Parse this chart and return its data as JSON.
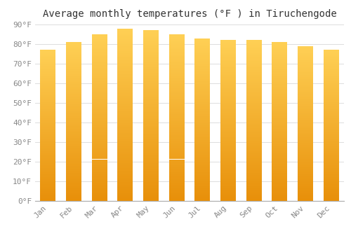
{
  "title": "Average monthly temperatures (°F ) in Tiruchengode",
  "months": [
    "Jan",
    "Feb",
    "Mar",
    "Apr",
    "May",
    "Jun",
    "Jul",
    "Aug",
    "Sep",
    "Oct",
    "Nov",
    "Dec"
  ],
  "values": [
    77,
    81,
    85,
    88,
    87,
    85,
    83,
    82,
    82,
    81,
    79,
    77
  ],
  "ylim": [
    0,
    90
  ],
  "yticks": [
    0,
    10,
    20,
    30,
    40,
    50,
    60,
    70,
    80,
    90
  ],
  "ytick_labels": [
    "0°F",
    "10°F",
    "20°F",
    "30°F",
    "40°F",
    "50°F",
    "60°F",
    "70°F",
    "80°F",
    "90°F"
  ],
  "background_color": "#FFFFFF",
  "grid_color": "#DDDDDD",
  "title_fontsize": 10,
  "tick_fontsize": 8,
  "bar_color_bottom": "#E8900A",
  "bar_color_mid": "#FFA500",
  "bar_color_top": "#FFD055",
  "bar_width": 0.6,
  "tick_color": "#888888"
}
